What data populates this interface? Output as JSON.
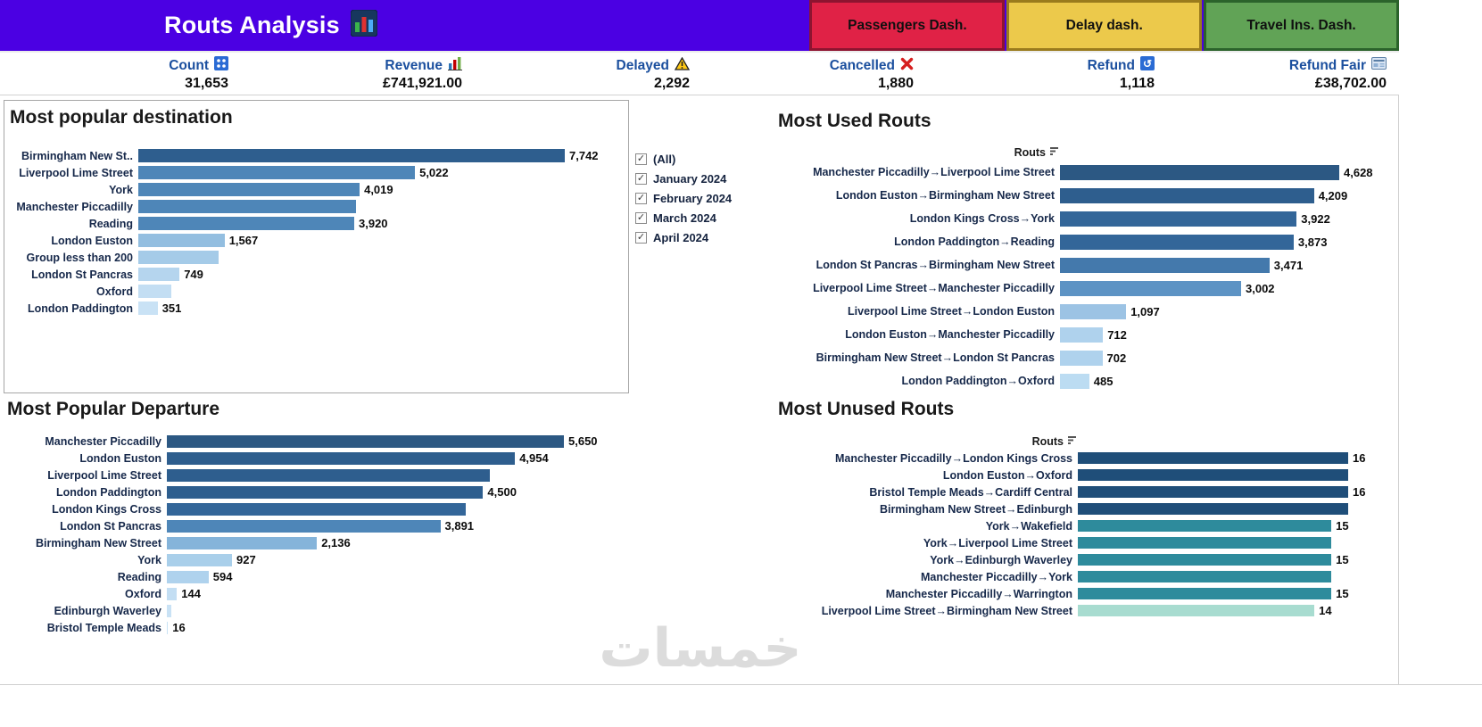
{
  "header": {
    "title": "Routs Analysis",
    "title_icon": "bar-chart-icon",
    "nav_buttons": [
      {
        "label": "Passengers Dash.",
        "bg": "#E02246",
        "border": "#8E1430"
      },
      {
        "label": "Delay dash.",
        "bg": "#ECC94B",
        "border": "#9A7B1D"
      },
      {
        "label": "Travel Ins. Dash.",
        "bg": "#61A356",
        "border": "#2B632B"
      }
    ]
  },
  "kpis": [
    {
      "label": "Count",
      "value": "31,653",
      "icon": "count-grid-icon"
    },
    {
      "label": "Revenue",
      "value": "£741,921.00",
      "icon": "mini-bar-chart-icon"
    },
    {
      "label": "Delayed",
      "value": "2,292",
      "icon": "warning-triangle-icon"
    },
    {
      "label": "Cancelled",
      "value": "1,880",
      "icon": "red-cross-icon"
    },
    {
      "label": "Refund",
      "value": "1,118",
      "icon": "refund-icon"
    },
    {
      "label": "Refund Fair",
      "value": "£38,702.00",
      "icon": "calculator-card-icon"
    }
  ],
  "filters": {
    "items": [
      {
        "label": "(All)",
        "checked": true
      },
      {
        "label": "January 2024",
        "checked": true
      },
      {
        "label": "February 2024",
        "checked": true
      },
      {
        "label": "March 2024",
        "checked": true
      },
      {
        "label": "April 2024",
        "checked": true
      }
    ]
  },
  "watermark": "خمسات",
  "chart_data": [
    {
      "type": "bar",
      "orientation": "horizontal",
      "title": "Most popular destination",
      "max": 7742,
      "rows": [
        {
          "label": "Birmingham New St..",
          "value": 7742,
          "value_label": "7,742",
          "color": "#2E5E8E"
        },
        {
          "label": "Liverpool Lime Street",
          "value": 5022,
          "value_label": "5,022",
          "color": "#4E86B8"
        },
        {
          "label": "York",
          "value": 4019,
          "value_label": "4,019",
          "color": "#4E86B8"
        },
        {
          "label": "Manchester Piccadilly",
          "value": 3950,
          "value_label": "",
          "color": "#4E86B8"
        },
        {
          "label": "Reading",
          "value": 3920,
          "value_label": "3,920",
          "color": "#4E86B8"
        },
        {
          "label": "London Euston",
          "value": 1567,
          "value_label": "1,567",
          "color": "#93BEE0"
        },
        {
          "label": "Group less than 200",
          "value": 1450,
          "value_label": "",
          "color": "#A5CBE8"
        },
        {
          "label": "London St Pancras",
          "value": 749,
          "value_label": "749",
          "color": "#B5D5EE"
        },
        {
          "label": "Oxford",
          "value": 600,
          "value_label": "",
          "color": "#C3DEF3"
        },
        {
          "label": "London Paddington",
          "value": 351,
          "value_label": "351",
          "color": "#C9E2F5"
        }
      ]
    },
    {
      "type": "bar",
      "orientation": "horizontal",
      "title": "Most Used Routs",
      "column_header": "Routs",
      "max": 4628,
      "rows": [
        {
          "label": "Manchester Piccadilly→Liverpool Lime Street",
          "value": 4628,
          "value_label": "4,628",
          "color": "#2C5883"
        },
        {
          "label": "London Euston→Birmingham New Street",
          "value": 4209,
          "value_label": "4,209",
          "color": "#2E5E8E"
        },
        {
          "label": "London Kings Cross→York",
          "value": 3922,
          "value_label": "3,922",
          "color": "#336699"
        },
        {
          "label": "London Paddington→Reading",
          "value": 3873,
          "value_label": "3,873",
          "color": "#336699"
        },
        {
          "label": "London St Pancras→Birmingham New Street",
          "value": 3471,
          "value_label": "3,471",
          "color": "#4479AC"
        },
        {
          "label": "Liverpool Lime Street→Manchester Piccadilly",
          "value": 3002,
          "value_label": "3,002",
          "color": "#5D93C4"
        },
        {
          "label": "Liverpool Lime Street→London Euston",
          "value": 1097,
          "value_label": "1,097",
          "color": "#9CC3E4"
        },
        {
          "label": "London Euston→Manchester Piccadilly",
          "value": 712,
          "value_label": "712",
          "color": "#AFD2ED"
        },
        {
          "label": "Birmingham New Street→London St Pancras",
          "value": 702,
          "value_label": "702",
          "color": "#AFD2ED"
        },
        {
          "label": "London Paddington→Oxford",
          "value": 485,
          "value_label": "485",
          "color": "#BCDCF2"
        }
      ]
    },
    {
      "type": "bar",
      "orientation": "horizontal",
      "title": "Most Popular Departure",
      "max": 5650,
      "rows": [
        {
          "label": "Manchester Piccadilly",
          "value": 5650,
          "value_label": "5,650",
          "color": "#2C5883"
        },
        {
          "label": "London Euston",
          "value": 4954,
          "value_label": "4,954",
          "color": "#2E5E8E"
        },
        {
          "label": "Liverpool Lime Street",
          "value": 4600,
          "value_label": "",
          "color": "#2E5E8E"
        },
        {
          "label": "London Paddington",
          "value": 4500,
          "value_label": "4,500",
          "color": "#2E5E8E"
        },
        {
          "label": "London Kings Cross",
          "value": 4250,
          "value_label": "",
          "color": "#336699"
        },
        {
          "label": "London St Pancras",
          "value": 3891,
          "value_label": "3,891",
          "color": "#4E86B8"
        },
        {
          "label": "Birmingham New Street",
          "value": 2136,
          "value_label": "2,136",
          "color": "#85B4DA"
        },
        {
          "label": "York",
          "value": 927,
          "value_label": "927",
          "color": "#A9CFEA"
        },
        {
          "label": "Reading",
          "value": 594,
          "value_label": "594",
          "color": "#AFD2ED"
        },
        {
          "label": "Oxford",
          "value": 144,
          "value_label": "144",
          "color": "#C3DEF3"
        },
        {
          "label": "Edinburgh Waverley",
          "value": 60,
          "value_label": "",
          "color": "#C9E2F5"
        },
        {
          "label": "Bristol Temple Meads",
          "value": 16,
          "value_label": "16",
          "color": "#C9E2F5"
        }
      ]
    },
    {
      "type": "bar",
      "orientation": "horizontal",
      "title": "Most Unused Routs",
      "column_header": "Routs",
      "max": 16,
      "rows": [
        {
          "label": "Manchester Piccadilly→London Kings Cross",
          "value": 16,
          "value_label": "16",
          "color": "#1F4E79"
        },
        {
          "label": "London Euston→Oxford",
          "value": 16,
          "value_label": "",
          "color": "#1F4E79"
        },
        {
          "label": "Bristol Temple Meads→Cardiff Central",
          "value": 16,
          "value_label": "16",
          "color": "#1F4E79"
        },
        {
          "label": "Birmingham New Street→Edinburgh",
          "value": 16,
          "value_label": "",
          "color": "#1F4E79"
        },
        {
          "label": "York→Wakefield",
          "value": 15,
          "value_label": "15",
          "color": "#2E8B9C"
        },
        {
          "label": "York→Liverpool Lime Street",
          "value": 15,
          "value_label": "",
          "color": "#2E8B9C"
        },
        {
          "label": "York→Edinburgh Waverley",
          "value": 15,
          "value_label": "15",
          "color": "#2E8B9C"
        },
        {
          "label": "Manchester Piccadilly→York",
          "value": 15,
          "value_label": "",
          "color": "#2E8B9C"
        },
        {
          "label": "Manchester Piccadilly→Warrington",
          "value": 15,
          "value_label": "15",
          "color": "#2E8B9C"
        },
        {
          "label": "Liverpool Lime Street→Birmingham New Street",
          "value": 14,
          "value_label": "14",
          "color": "#A8DCD0"
        }
      ]
    }
  ]
}
